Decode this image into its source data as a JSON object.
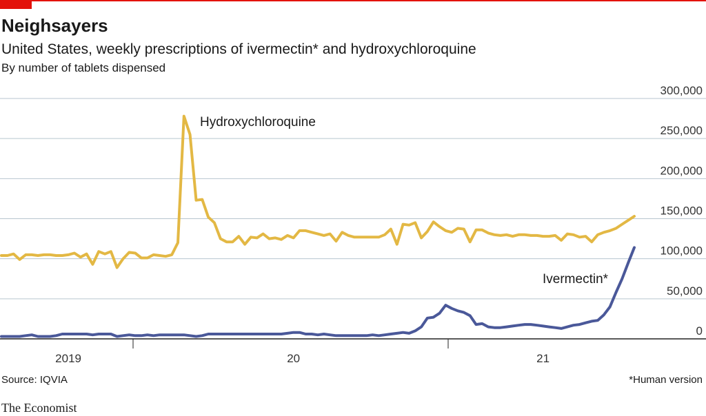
{
  "chart_data": {
    "type": "line",
    "title": "Neighsayers",
    "subtitle": "United States, weekly prescriptions of ivermectin* and hydroxychloroquine",
    "y_label": "By number of tablets dispensed",
    "source": "Source: IQVIA",
    "footnote": "*Human version",
    "publisher": "The Economist",
    "annotations": [
      "Hydroxychloroquine",
      "Ivermectin*"
    ],
    "categories": [
      null,
      null,
      null,
      null,
      null,
      null,
      null,
      null,
      null,
      null,
      null,
      "2019",
      null,
      null,
      null,
      null,
      null,
      null,
      null,
      null,
      null,
      null,
      null,
      null,
      null,
      null,
      null,
      null,
      null,
      null,
      null,
      null,
      null,
      null,
      null,
      null,
      null,
      null,
      null,
      null,
      null,
      null,
      null,
      null,
      null,
      null,
      null,
      null,
      "20",
      null,
      null,
      null,
      null,
      null,
      null,
      null,
      null,
      null,
      null,
      null,
      null,
      null,
      null,
      null,
      null,
      null,
      null,
      null,
      null,
      null,
      null,
      null,
      null,
      null,
      null,
      null,
      null,
      null,
      null,
      null,
      null,
      null,
      null,
      null,
      null,
      null,
      null,
      null,
      null,
      "21",
      null,
      null,
      null,
      null,
      null,
      null,
      null,
      null,
      null,
      null,
      null,
      null,
      null,
      null,
      null
    ],
    "series": [
      {
        "name": "Hydroxychloroquine",
        "color": "#e3b844",
        "values": [
          104000,
          104000,
          106000,
          99000,
          105000,
          105000,
          104000,
          105000,
          105000,
          104000,
          104000,
          105000,
          107000,
          102000,
          106000,
          93000,
          109000,
          106000,
          109000,
          89000,
          100000,
          108000,
          107000,
          101000,
          101000,
          105000,
          104000,
          103000,
          105000,
          120000,
          278000,
          255000,
          173000,
          174000,
          152000,
          145000,
          125000,
          121000,
          121000,
          128000,
          118000,
          127000,
          126000,
          131000,
          125000,
          126000,
          124000,
          129000,
          126000,
          135000,
          135000,
          133000,
          131000,
          129000,
          131000,
          122000,
          133000,
          129000,
          127000,
          127000,
          127000,
          127000,
          127000,
          130000,
          137000,
          118000,
          143000,
          142000,
          145000,
          126000,
          134000,
          146000,
          140000,
          135000,
          133000,
          138000,
          137000,
          121000,
          136000,
          136000,
          132000,
          130000,
          129000,
          130000,
          128000,
          130000,
          130000,
          129000,
          129000,
          128000,
          128000,
          129000,
          123000,
          131000,
          130000,
          127000,
          128000,
          121000,
          130000,
          133000,
          135000,
          138000,
          143000,
          148000,
          153000
        ]
      },
      {
        "name": "Ivermectin*",
        "color": "#4a5899",
        "values": [
          3000,
          3000,
          3000,
          3000,
          4000,
          5000,
          3000,
          3000,
          3000,
          4000,
          6000,
          6000,
          6000,
          6000,
          6000,
          5000,
          6000,
          6000,
          6000,
          3000,
          4000,
          5000,
          4000,
          4000,
          5000,
          4000,
          5000,
          5000,
          5000,
          5000,
          5000,
          4000,
          3000,
          4000,
          6000,
          6000,
          6000,
          6000,
          6000,
          6000,
          6000,
          6000,
          6000,
          6000,
          6000,
          6000,
          6000,
          7000,
          8000,
          8000,
          6000,
          6000,
          5000,
          6000,
          5000,
          4000,
          4000,
          4000,
          4000,
          4000,
          4000,
          5000,
          4000,
          5000,
          6000,
          7000,
          8000,
          7000,
          10000,
          15000,
          26000,
          27000,
          32000,
          42000,
          38000,
          35000,
          33000,
          29000,
          18000,
          19000,
          15000,
          14000,
          14000,
          15000,
          16000,
          17000,
          18000,
          18000,
          17000,
          16000,
          15000,
          14000,
          13000,
          15000,
          17000,
          18000,
          20000,
          22000,
          23000,
          30000,
          40000,
          58000,
          75000,
          95000,
          114000
        ]
      }
    ],
    "ylim": [
      0,
      300000
    ],
    "yticks": [
      0,
      {
        "value": 50000,
        "label": "50,000"
      },
      {
        "value": 100000,
        "label": "100,000"
      },
      {
        "value": 150000,
        "label": "150,000"
      },
      {
        "value": 200000,
        "label": "200,000"
      },
      {
        "value": 250000,
        "label": "250,000"
      },
      {
        "value": 300000,
        "label": "300,000"
      }
    ],
    "grid": true
  }
}
